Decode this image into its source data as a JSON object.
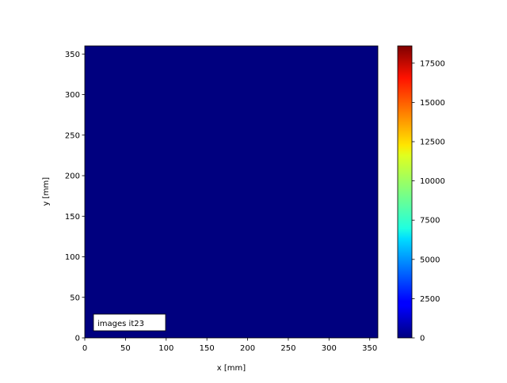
{
  "chart_data": {
    "type": "heatmap",
    "title": "",
    "xlabel": "x [mm]",
    "ylabel": "y [mm]",
    "xlim": [
      0,
      360
    ],
    "ylim": [
      0,
      360
    ],
    "xticks": [
      0,
      50,
      100,
      150,
      200,
      250,
      300,
      350
    ],
    "yticks": [
      0,
      50,
      100,
      150,
      200,
      250,
      300,
      350
    ],
    "values_description_uniform_value": 0,
    "colormap": "jet",
    "colorbar": {
      "range": [
        0,
        18600
      ],
      "ticks": [
        0,
        2500,
        5000,
        7500,
        10000,
        12500,
        15000,
        17500
      ]
    },
    "annotation": "images it23",
    "grid": false
  },
  "colors": {
    "field": "#00007f"
  }
}
